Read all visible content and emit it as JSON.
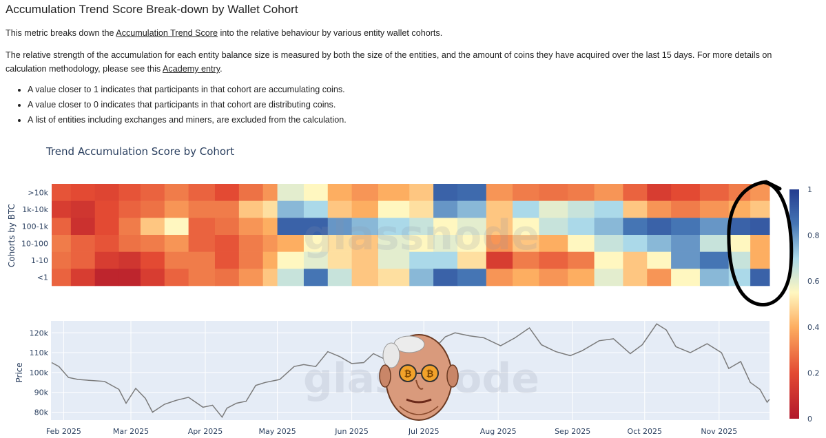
{
  "page": {
    "title": "Accumulation Trend Score Break-down by Wallet Cohort",
    "intro_prefix": "This metric breaks down the ",
    "intro_link": "Accumulation Trend Score",
    "intro_suffix": " into the relative behaviour by various entity wallet cohorts.",
    "detail_prefix": "The relative strength of the accumulation for each entity balance size is measured by both the size of the entities, and the amount of coins they have acquired over the last 15 days. For more details on calculation methodology, please see this ",
    "detail_link": "Academy entry",
    "detail_suffix": ".",
    "bullets": [
      "A value closer to 1 indicates that participants in that cohort are accumulating coins.",
      "A value closer to 0 indicates that participants in that cohort are distributing coins.",
      "A list of entities including exchanges and miners, are excluded from the calculation."
    ]
  },
  "chart_data": [
    {
      "type": "heatmap",
      "title": "Trend Accumulation Score by Cohort",
      "ylabel": "Cohorts by BTC",
      "watermark": "glassnode",
      "rows": [
        ">10k",
        "1k-10k",
        "100-1k",
        "10-100",
        "1-10",
        "<1"
      ],
      "x_start": "2025-01-27",
      "x_end": "2025-11-22",
      "colorscale": {
        "min": 0,
        "max": 1,
        "ticks": [
          0,
          0.2,
          0.4,
          0.6,
          0.8,
          1
        ]
      },
      "segments": [
        {
          "from": "2025-01-27",
          "to": "2025-02-04",
          "values": [
            0.22,
            0.15,
            0.25,
            0.3,
            0.28,
            0.25
          ]
        },
        {
          "from": "2025-02-04",
          "to": "2025-02-14",
          "values": [
            0.2,
            0.12,
            0.1,
            0.25,
            0.25,
            0.15
          ]
        },
        {
          "from": "2025-02-14",
          "to": "2025-02-24",
          "values": [
            0.18,
            0.2,
            0.2,
            0.22,
            0.15,
            0.05
          ]
        },
        {
          "from": "2025-02-24",
          "to": "2025-03-05",
          "values": [
            0.22,
            0.25,
            0.3,
            0.28,
            0.12,
            0.05
          ]
        },
        {
          "from": "2025-03-05",
          "to": "2025-03-15",
          "values": [
            0.25,
            0.28,
            0.45,
            0.3,
            0.2,
            0.15
          ]
        },
        {
          "from": "2025-03-15",
          "to": "2025-03-25",
          "values": [
            0.3,
            0.35,
            0.55,
            0.35,
            0.3,
            0.25
          ]
        },
        {
          "from": "2025-03-25",
          "to": "2025-04-05",
          "values": [
            0.25,
            0.3,
            0.25,
            0.25,
            0.3,
            0.3
          ]
        },
        {
          "from": "2025-04-05",
          "to": "2025-04-15",
          "values": [
            0.2,
            0.3,
            0.28,
            0.22,
            0.22,
            0.28
          ]
        },
        {
          "from": "2025-04-15",
          "to": "2025-04-25",
          "values": [
            0.28,
            0.45,
            0.35,
            0.3,
            0.3,
            0.35
          ]
        },
        {
          "from": "2025-04-25",
          "to": "2025-05-01",
          "values": [
            0.35,
            0.5,
            0.4,
            0.35,
            0.4,
            0.45
          ]
        },
        {
          "from": "2025-05-01",
          "to": "2025-05-12",
          "values": [
            0.6,
            0.75,
            0.9,
            0.4,
            0.55,
            0.65
          ]
        },
        {
          "from": "2025-05-12",
          "to": "2025-05-22",
          "values": [
            0.55,
            0.7,
            0.9,
            0.55,
            0.6,
            0.85
          ]
        },
        {
          "from": "2025-05-22",
          "to": "2025-06-01",
          "values": [
            0.4,
            0.45,
            0.8,
            0.5,
            0.5,
            0.65
          ]
        },
        {
          "from": "2025-06-01",
          "to": "2025-06-12",
          "values": [
            0.35,
            0.4,
            0.75,
            0.45,
            0.45,
            0.45
          ]
        },
        {
          "from": "2025-06-12",
          "to": "2025-06-25",
          "values": [
            0.4,
            0.55,
            0.7,
            0.6,
            0.6,
            0.5
          ]
        },
        {
          "from": "2025-06-25",
          "to": "2025-07-05",
          "values": [
            0.45,
            0.5,
            0.65,
            0.55,
            0.7,
            0.75
          ]
        },
        {
          "from": "2025-07-05",
          "to": "2025-07-15",
          "values": [
            0.9,
            0.8,
            0.55,
            0.6,
            0.7,
            0.9
          ]
        },
        {
          "from": "2025-07-15",
          "to": "2025-07-27",
          "values": [
            0.88,
            0.75,
            0.6,
            0.55,
            0.5,
            0.85
          ]
        },
        {
          "from": "2025-07-27",
          "to": "2025-08-07",
          "values": [
            0.35,
            0.45,
            0.45,
            0.35,
            0.15,
            0.35
          ]
        },
        {
          "from": "2025-08-07",
          "to": "2025-08-18",
          "values": [
            0.3,
            0.7,
            0.55,
            0.45,
            0.3,
            0.4
          ]
        },
        {
          "from": "2025-08-18",
          "to": "2025-08-30",
          "values": [
            0.28,
            0.6,
            0.65,
            0.4,
            0.25,
            0.35
          ]
        },
        {
          "from": "2025-08-30",
          "to": "2025-09-10",
          "values": [
            0.3,
            0.65,
            0.7,
            0.55,
            0.3,
            0.4
          ]
        },
        {
          "from": "2025-09-10",
          "to": "2025-09-22",
          "values": [
            0.35,
            0.7,
            0.75,
            0.65,
            0.55,
            0.6
          ]
        },
        {
          "from": "2025-09-22",
          "to": "2025-10-02",
          "values": [
            0.25,
            0.45,
            0.85,
            0.7,
            0.45,
            0.45
          ]
        },
        {
          "from": "2025-10-02",
          "to": "2025-10-12",
          "values": [
            0.15,
            0.35,
            0.9,
            0.75,
            0.55,
            0.35
          ]
        },
        {
          "from": "2025-10-12",
          "to": "2025-10-24",
          "values": [
            0.2,
            0.3,
            0.85,
            0.8,
            0.8,
            0.55
          ]
        },
        {
          "from": "2025-10-24",
          "to": "2025-11-05",
          "values": [
            0.25,
            0.35,
            0.8,
            0.65,
            0.85,
            0.75
          ]
        },
        {
          "from": "2025-11-05",
          "to": "2025-11-14",
          "values": [
            0.3,
            0.4,
            0.9,
            0.55,
            0.65,
            0.7
          ]
        },
        {
          "from": "2025-11-14",
          "to": "2025-11-22",
          "values": [
            0.35,
            0.45,
            0.92,
            0.4,
            0.4,
            0.9
          ]
        }
      ]
    },
    {
      "type": "line",
      "ylabel": "Price",
      "watermark": "glassnode",
      "line_color": "#7a7a7a",
      "y_ticks": [
        "80k",
        "90k",
        "100k",
        "110k",
        "120k"
      ],
      "ylim": [
        76000,
        126000
      ],
      "x_ticks": [
        "Feb 2025",
        "Mar 2025",
        "Apr 2025",
        "May 2025",
        "Jun 2025",
        "Jul 2025",
        "Aug 2025",
        "Sep 2025",
        "Oct 2025",
        "Nov 2025"
      ],
      "x_tick_dates": [
        "2025-02-01",
        "2025-03-01",
        "2025-04-01",
        "2025-05-01",
        "2025-06-01",
        "2025-07-01",
        "2025-08-01",
        "2025-09-01",
        "2025-10-01",
        "2025-11-01"
      ],
      "x_range": [
        "2025-01-27",
        "2025-11-22"
      ],
      "series": [
        {
          "x": [
            "2025-01-27",
            "2025-01-30",
            "2025-02-03",
            "2025-02-07",
            "2025-02-12",
            "2025-02-18",
            "2025-02-24",
            "2025-02-27",
            "2025-03-03",
            "2025-03-07",
            "2025-03-10",
            "2025-03-15",
            "2025-03-20",
            "2025-03-25",
            "2025-03-31",
            "2025-04-04",
            "2025-04-08",
            "2025-04-10",
            "2025-04-14",
            "2025-04-18",
            "2025-04-22",
            "2025-04-26",
            "2025-05-02",
            "2025-05-08",
            "2025-05-12",
            "2025-05-17",
            "2025-05-22",
            "2025-05-27",
            "2025-06-01",
            "2025-06-06",
            "2025-06-10",
            "2025-06-16",
            "2025-06-22",
            "2025-06-27",
            "2025-07-03",
            "2025-07-10",
            "2025-07-14",
            "2025-07-20",
            "2025-07-26",
            "2025-08-02",
            "2025-08-08",
            "2025-08-14",
            "2025-08-19",
            "2025-08-25",
            "2025-08-31",
            "2025-09-05",
            "2025-09-12",
            "2025-09-18",
            "2025-09-25",
            "2025-09-30",
            "2025-10-06",
            "2025-10-10",
            "2025-10-14",
            "2025-10-20",
            "2025-10-27",
            "2025-11-02",
            "2025-11-05",
            "2025-11-10",
            "2025-11-14",
            "2025-11-18",
            "2025-11-21",
            "2025-11-22"
          ],
          "y": [
            105000,
            103000,
            97500,
            96500,
            96000,
            95500,
            91500,
            84500,
            92000,
            87000,
            80000,
            84000,
            86000,
            87500,
            82500,
            83500,
            77500,
            82000,
            84500,
            85500,
            93500,
            95000,
            96500,
            103000,
            104000,
            103000,
            110500,
            108000,
            104500,
            105000,
            109500,
            106000,
            101500,
            107000,
            109000,
            118000,
            120000,
            118500,
            117500,
            113500,
            117500,
            122500,
            114000,
            110500,
            108500,
            111000,
            116000,
            117000,
            109500,
            114000,
            124500,
            121500,
            113000,
            110000,
            114500,
            110000,
            102000,
            105500,
            95000,
            91500,
            85000,
            86500
          ]
        }
      ]
    }
  ]
}
